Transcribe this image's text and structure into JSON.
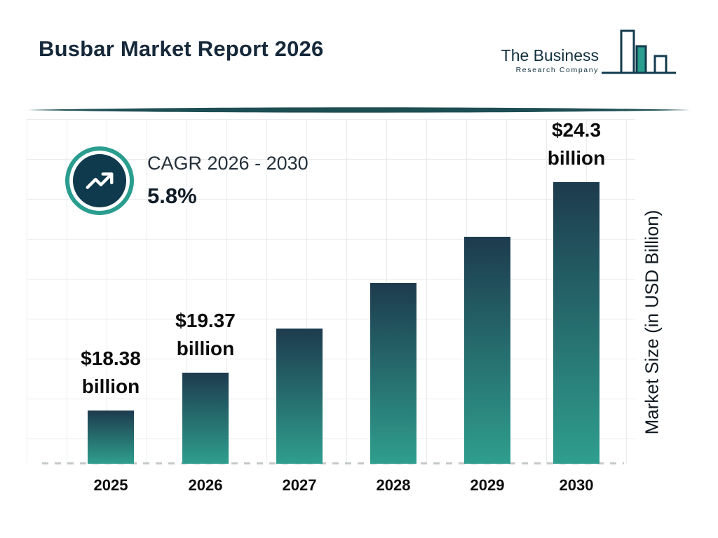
{
  "header": {
    "title": "Busbar Market Report 2026",
    "logo": {
      "line1": "The Business",
      "line2": "Research Company",
      "icon": "bar-chart-logo-icon"
    }
  },
  "cagr": {
    "label": "CAGR 2026 - 2030",
    "value": "5.8%",
    "icon": "trending-up-icon"
  },
  "chart_data": {
    "type": "bar",
    "title": "Busbar Market Report 2026",
    "categories": [
      "2025",
      "2026",
      "2027",
      "2028",
      "2029",
      "2030"
    ],
    "values": [
      18.38,
      19.37,
      20.5,
      21.7,
      22.9,
      24.3
    ],
    "value_labels": [
      "$18.38 billion",
      "$19.37 billion",
      null,
      null,
      null,
      "$24.3 billion"
    ],
    "xlabel": "",
    "ylabel": "Market Size (in USD Billion)",
    "ylim": [
      17,
      25
    ],
    "axis_baseline_value": 17,
    "grid": true,
    "legend": "none",
    "bar_gradient_top": "#1d3b4e",
    "bar_gradient_bottom": "#2f9e8e"
  },
  "colors": {
    "accent_teal": "#2a9d8f",
    "navy": "#123a4e",
    "badge_fill": "#0f3a4d",
    "divider": "#1d4e54",
    "grid_line": "#e9ebec"
  }
}
